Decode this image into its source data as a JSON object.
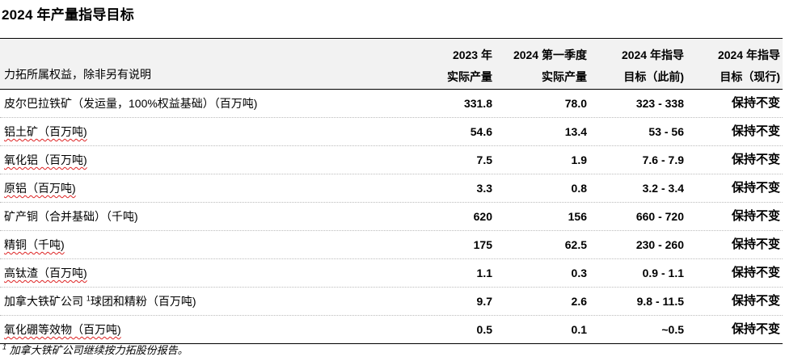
{
  "title": "2024 年产量指导目标",
  "header": {
    "label": "力拓所属权益，除非另有说明",
    "col1_line1": "2023 年",
    "col1_line2": "实际产量",
    "col2_line1": "2024 第一季度",
    "col2_line2": "实际产量",
    "col3_line1": "2024 年指导",
    "col3_line2": "目标（此前)",
    "col4_line1": "2024 年指导",
    "col4_line2": "目标（现行)"
  },
  "rows": [
    {
      "name": "皮尔巴拉铁矿（发运量，100%权益基础）（百万吨)",
      "v2023": "331.8",
      "q1": "78.0",
      "prev": "323 - 338",
      "curr": "保持不变"
    },
    {
      "name": "铝土矿（百万吨)",
      "v2023": "54.6",
      "q1": "13.4",
      "prev": "53 - 56",
      "curr": "保持不变"
    },
    {
      "name": "氧化铝（百万吨)",
      "v2023": "7.5",
      "q1": "1.9",
      "prev": "7.6 - 7.9",
      "curr": "保持不变"
    },
    {
      "name": "原铝（百万吨)",
      "v2023": "3.3",
      "q1": "0.8",
      "prev": "3.2 - 3.4",
      "curr": "保持不变"
    },
    {
      "name": "矿产铜（合并基础）（千吨)",
      "v2023": "620",
      "q1": "156",
      "prev": "660 - 720",
      "curr": "保持不变"
    },
    {
      "name": "精铜（千吨)",
      "v2023": "175",
      "q1": "62.5",
      "prev": "230 - 260",
      "curr": "保持不变"
    },
    {
      "name": "高钛渣（百万吨)",
      "v2023": "1.1",
      "q1": "0.3",
      "prev": "0.9 - 1.1",
      "curr": "保持不变"
    },
    {
      "name_a": "加拿大铁矿公司",
      "sup": "1",
      "name_b": "球团和精粉（百万吨)",
      "v2023": "9.7",
      "q1": "2.6",
      "prev": "9.8 - 11.5",
      "curr": "保持不变"
    },
    {
      "name": "氧化硼等效物（百万吨)",
      "v2023": "0.5",
      "q1": "0.1",
      "prev": "~0.5",
      "curr": "保持不变"
    }
  ],
  "footnote": {
    "sup": "1",
    "text": "加拿大铁矿公司继续按力拓股份报告。"
  }
}
